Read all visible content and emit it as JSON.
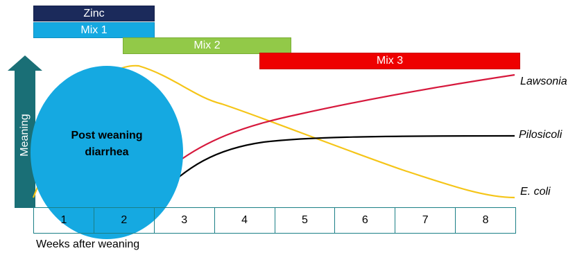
{
  "treatments": {
    "zinc": "Zinc",
    "mix1": "Mix 1",
    "mix2": "Mix 2",
    "mix3": "Mix 3"
  },
  "colors": {
    "zinc": "#1b2a5b",
    "mix1": "#15a9e1",
    "mix2": "#92c948",
    "mix3": "#ee0000",
    "arrow": "#1a6f76",
    "ellipse": "#15a9e1",
    "lawsonia_curve": "#d6183c",
    "pilosicoli_curve": "#000000",
    "ecoli_curve": "#f5c518",
    "table_border": "#1a7f86"
  },
  "arrow_label": "Meaning",
  "post_weaning": {
    "line1": "Post weaning",
    "line2": "diarrhea"
  },
  "curves": {
    "lawsonia": "Lawsonia",
    "pilosicoli": "Pilosicoli",
    "ecoli": "E. coli"
  },
  "weeks": {
    "cells": [
      "1",
      "2",
      "3",
      "4",
      "5",
      "6",
      "7",
      "8"
    ],
    "label": "Weeks after weaning"
  }
}
